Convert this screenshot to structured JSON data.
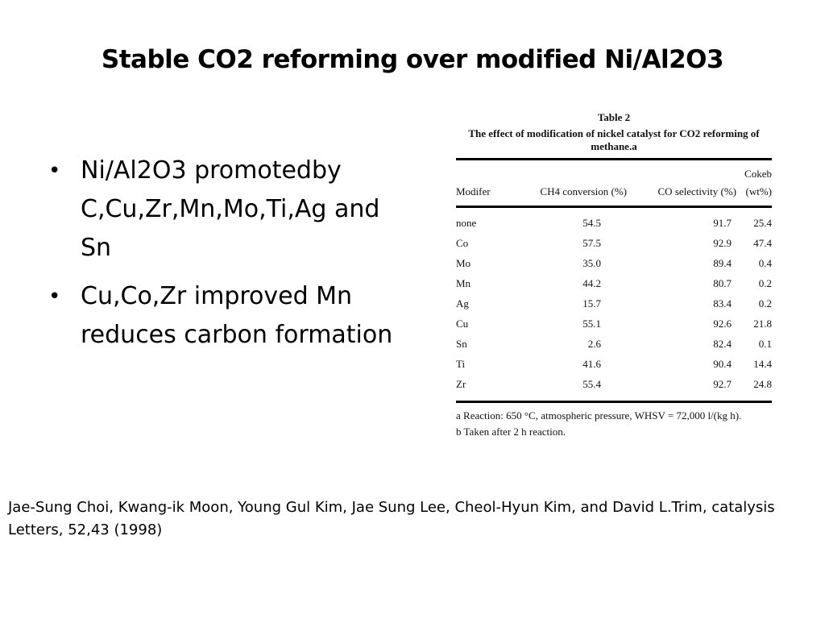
{
  "title": "Stable CO2 reforming over modified Ni/Al2O3",
  "bullets": [
    "Ni/Al2O3 promotedby C,Cu,Zr,Mn,Mo,Ti,Ag and Sn",
    "Cu,Co,Zr improved Mn reduces carbon formation"
  ],
  "table": {
    "number": "Table 2",
    "caption": "The effect of modification of nickel catalyst for CO2 reforming of methane.a",
    "headers": [
      "Modifer",
      "CH4 conversion (%)",
      "CO selectivity (%)",
      "Cokeb (wt%)"
    ],
    "rows": [
      [
        "none",
        "54.5",
        "91.7",
        "25.4"
      ],
      [
        "Co",
        "57.5",
        "92.9",
        "47.4"
      ],
      [
        "Mo",
        "35.0",
        "89.4",
        "0.4"
      ],
      [
        "Mn",
        "44.2",
        "80.7",
        "0.2"
      ],
      [
        "Ag",
        "15.7",
        "83.4",
        "0.2"
      ],
      [
        "Cu",
        "55.1",
        "92.6",
        "21.8"
      ],
      [
        "Sn",
        "2.6",
        "82.4",
        "0.1"
      ],
      [
        "Ti",
        "41.6",
        "90.4",
        "14.4"
      ],
      [
        "Zr",
        "55.4",
        "92.7",
        "24.8"
      ]
    ],
    "footnotes": [
      "a Reaction: 650 °C, atmospheric pressure, WHSV = 72,000 l/(kg h).",
      "b Taken after 2 h reaction."
    ]
  },
  "citation": "Jae-Sung Choi, Kwang-ik Moon, Young Gul Kim, Jae Sung Lee, Cheol-Hyun Kim, and David L.Trim, catalysis Letters, 52,43 (1998)"
}
